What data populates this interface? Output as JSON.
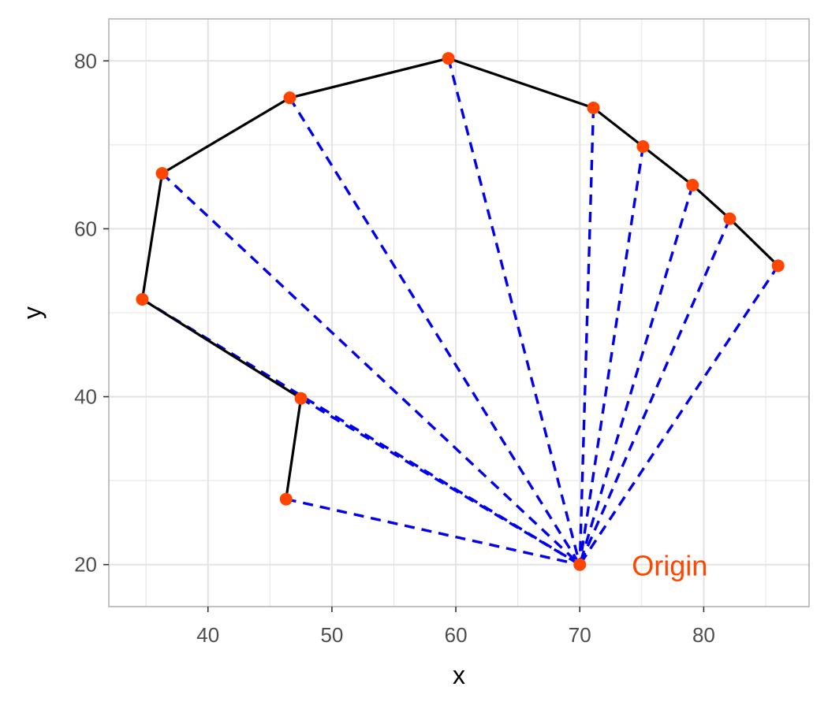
{
  "chart_data": {
    "type": "scatter",
    "title": "",
    "xlabel": "x",
    "ylabel": "y",
    "xlim": [
      32,
      88.5
    ],
    "ylim": [
      15,
      85
    ],
    "x_ticks": [
      40,
      50,
      60,
      70,
      80
    ],
    "y_ticks": [
      20,
      40,
      60,
      80
    ],
    "grid": true,
    "origin": {
      "x": 70,
      "y": 20,
      "label": "Origin"
    },
    "points": [
      {
        "x": 46.3,
        "y": 27.8
      },
      {
        "x": 47.5,
        "y": 39.8
      },
      {
        "x": 34.7,
        "y": 51.6
      },
      {
        "x": 36.3,
        "y": 66.6
      },
      {
        "x": 46.6,
        "y": 75.6
      },
      {
        "x": 59.4,
        "y": 80.3
      },
      {
        "x": 71.1,
        "y": 74.4
      },
      {
        "x": 75.1,
        "y": 69.8
      },
      {
        "x": 79.1,
        "y": 65.2
      },
      {
        "x": 82.1,
        "y": 61.2
      },
      {
        "x": 86.0,
        "y": 55.6
      }
    ],
    "colors": {
      "path": "#000000",
      "rays": "#0000ee",
      "points": "#ff4500",
      "annotation": "#ff4500",
      "grid": "#e3e3e3",
      "panel_border": "#b3b3b3"
    }
  }
}
